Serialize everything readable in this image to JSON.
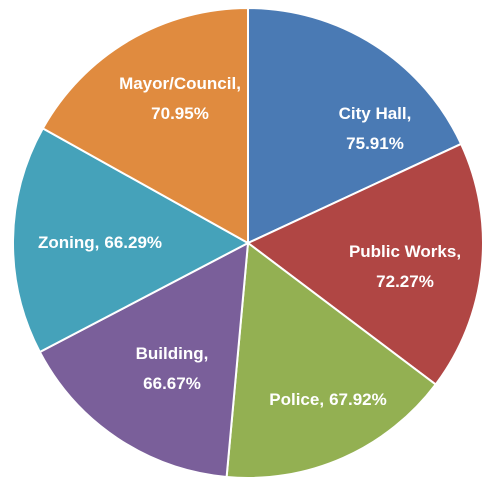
{
  "chart_data": {
    "type": "pie",
    "categories": [
      "City Hall",
      "Public Works",
      "Police",
      "Building",
      "Zoning",
      "Mayor/Council"
    ],
    "values": [
      75.91,
      72.27,
      67.92,
      66.67,
      66.29,
      70.95
    ],
    "value_labels": [
      "75.91%",
      "72.27%",
      "67.92%",
      "66.67%",
      "66.29%",
      "70.95%"
    ],
    "label_separator": ",",
    "colors": [
      "#4a7ab4",
      "#b04644",
      "#93b052",
      "#7a5f9a",
      "#45a2ba",
      "#e08b3f"
    ]
  }
}
